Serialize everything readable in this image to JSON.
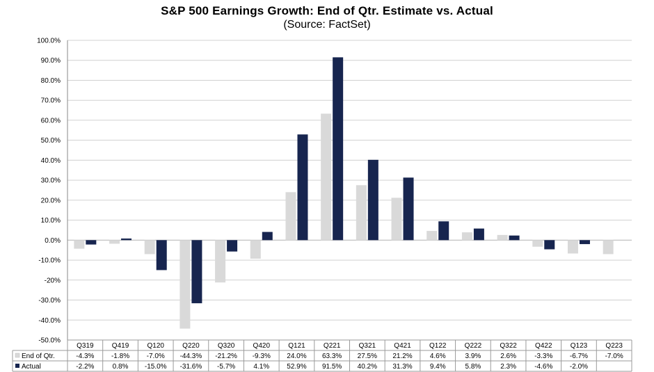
{
  "chart_data": {
    "type": "bar",
    "title": "S&P 500 Earnings Growth:  End of Qtr. Estimate vs. Actual",
    "subtitle": "(Source:  FactSet)",
    "categories": [
      "Q319",
      "Q419",
      "Q120",
      "Q220",
      "Q320",
      "Q420",
      "Q121",
      "Q221",
      "Q321",
      "Q421",
      "Q122",
      "Q222",
      "Q322",
      "Q422",
      "Q123",
      "Q223"
    ],
    "series": [
      {
        "name": "End of Qtr.",
        "color": "#d9d9d9",
        "values": [
          -4.3,
          -1.8,
          -7.0,
          -44.3,
          -21.2,
          -9.3,
          24.0,
          63.3,
          27.5,
          21.2,
          4.6,
          3.9,
          2.6,
          -3.3,
          -6.7,
          -7.0
        ],
        "labels": [
          "-4.3%",
          "-1.8%",
          "-7.0%",
          "-44.3%",
          "-21.2%",
          "-9.3%",
          "24.0%",
          "63.3%",
          "27.5%",
          "21.2%",
          "4.6%",
          "3.9%",
          "2.6%",
          "-3.3%",
          "-6.7%",
          "-7.0%"
        ]
      },
      {
        "name": "Actual",
        "color": "#17254f",
        "values": [
          -2.2,
          0.8,
          -15.0,
          -31.6,
          -5.7,
          4.1,
          52.9,
          91.5,
          40.2,
          31.3,
          9.4,
          5.8,
          2.3,
          -4.6,
          -2.0,
          null
        ],
        "labels": [
          "-2.2%",
          "0.8%",
          "-15.0%",
          "-31.6%",
          "-5.7%",
          "4.1%",
          "52.9%",
          "91.5%",
          "40.2%",
          "31.3%",
          "9.4%",
          "5.8%",
          "2.3%",
          "-4.6%",
          "-2.0%",
          ""
        ]
      }
    ],
    "ylim": [
      -50,
      100
    ],
    "ytick_labels": [
      "100.0%",
      "90.0%",
      "80.0%",
      "70.0%",
      "60.0%",
      "50.0%",
      "40.0%",
      "30.0%",
      "20.0%",
      "10.0%",
      "0.0%",
      "-10.0%",
      "-20%",
      "-30.0%",
      "-40.0%",
      "-50.0%"
    ],
    "ytick_values": [
      100,
      90,
      80,
      70,
      60,
      50,
      40,
      30,
      20,
      10,
      0,
      -10,
      -20,
      -30,
      -40,
      -50
    ],
    "grid": true,
    "legend": "data-table"
  }
}
